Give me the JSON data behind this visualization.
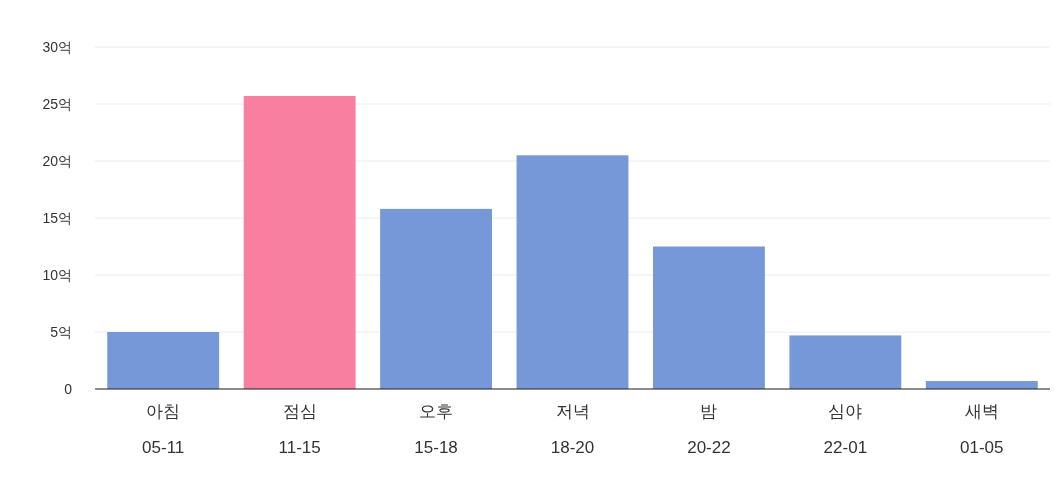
{
  "chart_data": {
    "type": "bar",
    "categories": [
      "아침\n05-11",
      "점심\n11-15",
      "오후\n15-18",
      "저녁\n18-20",
      "밤\n20-22",
      "심야\n22-01",
      "새벽\n01-05"
    ],
    "values": [
      5.0,
      25.7,
      15.8,
      20.5,
      12.5,
      4.7,
      0.7
    ],
    "colors": [
      "#7697d8",
      "#f87fa0",
      "#7697d8",
      "#7697d8",
      "#7697d8",
      "#7697d8",
      "#7697d8"
    ],
    "ylim": [
      0,
      30
    ],
    "yticks": [
      0,
      {
        "value": 5,
        "label": "5억"
      },
      {
        "value": 10,
        "label": "10억"
      },
      {
        "value": 15,
        "label": "15억"
      },
      {
        "value": 20,
        "label": "20억"
      },
      {
        "value": 25,
        "label": "25억"
      },
      {
        "value": 30,
        "label": "30억"
      }
    ],
    "grid": "y"
  }
}
